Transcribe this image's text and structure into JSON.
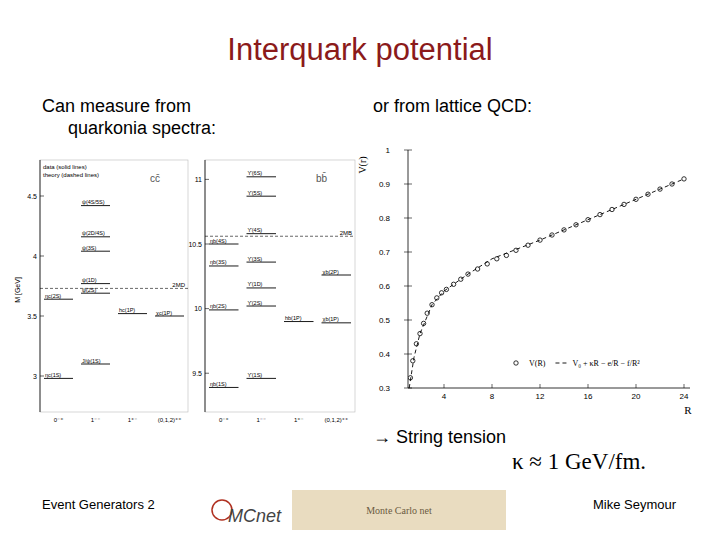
{
  "title": "Interquark potential",
  "left_text": [
    "Can measure from",
    "quarkonia spectra:"
  ],
  "right_text": "or from lattice QCD:",
  "arrow_text": "→ String tension",
  "formula": "κ ≈ 1 GeV/fm.",
  "footer_left": "Event Generators 2",
  "footer_right": "Mike Seymour",
  "logo_texts": [
    "MCnet",
    "Monte Carlo net"
  ],
  "chart_data": [
    {
      "type": "level",
      "y_label": "M [GeV]",
      "annotations": [
        "data (solid lines)",
        "theory (dashed lines)"
      ],
      "categories": [
        "0⁻⁺",
        "1⁻⁻",
        "1⁺⁻",
        "(0,1,2)⁺⁺"
      ],
      "panels": [
        {
          "label": "cc̄",
          "ylim": [
            2.7,
            4.8
          ],
          "yticks": [
            3,
            3.5,
            4,
            4.5
          ],
          "levels": [
            {
              "label": "ηc(1S)",
              "column": 0,
              "value": 2.98
            },
            {
              "label": "ηc(2S)",
              "column": 0,
              "value": 3.64
            },
            {
              "label": "J/ψ(1S)",
              "column": 1,
              "value": 3.1
            },
            {
              "label": "ψ(2S)",
              "column": 1,
              "value": 3.69
            },
            {
              "label": "ψ(1D)",
              "column": 1,
              "value": 3.77
            },
            {
              "label": "ψ(3S)",
              "column": 1,
              "value": 4.04
            },
            {
              "label": "ψ(2D/4S)",
              "column": 1,
              "value": 4.16
            },
            {
              "label": "ψ(4S/5S)",
              "column": 1,
              "value": 4.42
            },
            {
              "label": "hc(1P)",
              "column": 2,
              "value": 3.52
            },
            {
              "label": "χc(1P)",
              "column": 3,
              "value": 3.5
            }
          ],
          "thresholds": [
            {
              "label": "2MD",
              "value": 3.73
            }
          ]
        },
        {
          "label": "bb̄",
          "ylim": [
            9.2,
            11.15
          ],
          "yticks": [
            9.5,
            10,
            10.5,
            11
          ],
          "levels": [
            {
              "label": "ηb(1S)",
              "column": 0,
              "value": 9.39
            },
            {
              "label": "ηb(2S)",
              "column": 0,
              "value": 9.99
            },
            {
              "label": "ηb(3S)",
              "column": 0,
              "value": 10.33
            },
            {
              "label": "ηb(4S)",
              "column": 0,
              "value": 10.5
            },
            {
              "label": "ϒ(1S)",
              "column": 1,
              "value": 9.46
            },
            {
              "label": "ϒ(2S)",
              "column": 1,
              "value": 10.02
            },
            {
              "label": "ϒ(1D)",
              "column": 1,
              "value": 10.16
            },
            {
              "label": "ϒ(3S)",
              "column": 1,
              "value": 10.36
            },
            {
              "label": "ϒ(4S)",
              "column": 1,
              "value": 10.58
            },
            {
              "label": "ϒ(5S)",
              "column": 1,
              "value": 10.87
            },
            {
              "label": "ϒ(6S)",
              "column": 1,
              "value": 11.02
            },
            {
              "label": "hb(1P)",
              "column": 2,
              "value": 9.9
            },
            {
              "label": "χb(1P)",
              "column": 3,
              "value": 9.89
            },
            {
              "label": "χb(2P)",
              "column": 3,
              "value": 10.26
            }
          ],
          "thresholds": [
            {
              "label": "2MB",
              "value": 10.56
            }
          ]
        }
      ]
    },
    {
      "type": "scatter",
      "x_label": "R",
      "y_label": "V(r)",
      "xlim": [
        1,
        24.5
      ],
      "xticks": [
        4,
        8,
        12,
        16,
        20,
        24
      ],
      "ylim": [
        0.3,
        1.0
      ],
      "yticks": [
        0.3,
        0.4,
        0.5,
        0.6,
        0.7,
        0.8,
        0.9,
        1
      ],
      "grid": false,
      "legend": "lower right",
      "series": [
        {
          "name": "V(R)",
          "type": "scatter",
          "marker": "circle",
          "color": "#000000",
          "x": [
            1.2,
            1.4,
            1.7,
            2.0,
            2.3,
            2.6,
            3.0,
            3.4,
            3.8,
            4.2,
            4.8,
            5.4,
            6,
            6.8,
            7.6,
            8.4,
            9.2,
            10,
            11,
            12,
            13,
            14,
            15,
            16,
            17,
            18,
            19,
            20,
            21,
            22,
            23,
            24
          ],
          "values": [
            0.33,
            0.38,
            0.43,
            0.46,
            0.49,
            0.52,
            0.545,
            0.565,
            0.58,
            0.59,
            0.605,
            0.62,
            0.635,
            0.65,
            0.665,
            0.68,
            0.69,
            0.705,
            0.72,
            0.735,
            0.75,
            0.765,
            0.78,
            0.795,
            0.81,
            0.825,
            0.84,
            0.855,
            0.87,
            0.885,
            0.9,
            0.915
          ]
        },
        {
          "name": "V₀ + κR − e/R − f/R²",
          "type": "line",
          "line_style": "dashed",
          "color": "#000000",
          "x": [
            1.1,
            1.5,
            2,
            3,
            4,
            6,
            8,
            12,
            16,
            20,
            24
          ],
          "values": [
            0.3,
            0.39,
            0.46,
            0.545,
            0.585,
            0.635,
            0.68,
            0.735,
            0.795,
            0.855,
            0.915
          ]
        }
      ]
    }
  ]
}
